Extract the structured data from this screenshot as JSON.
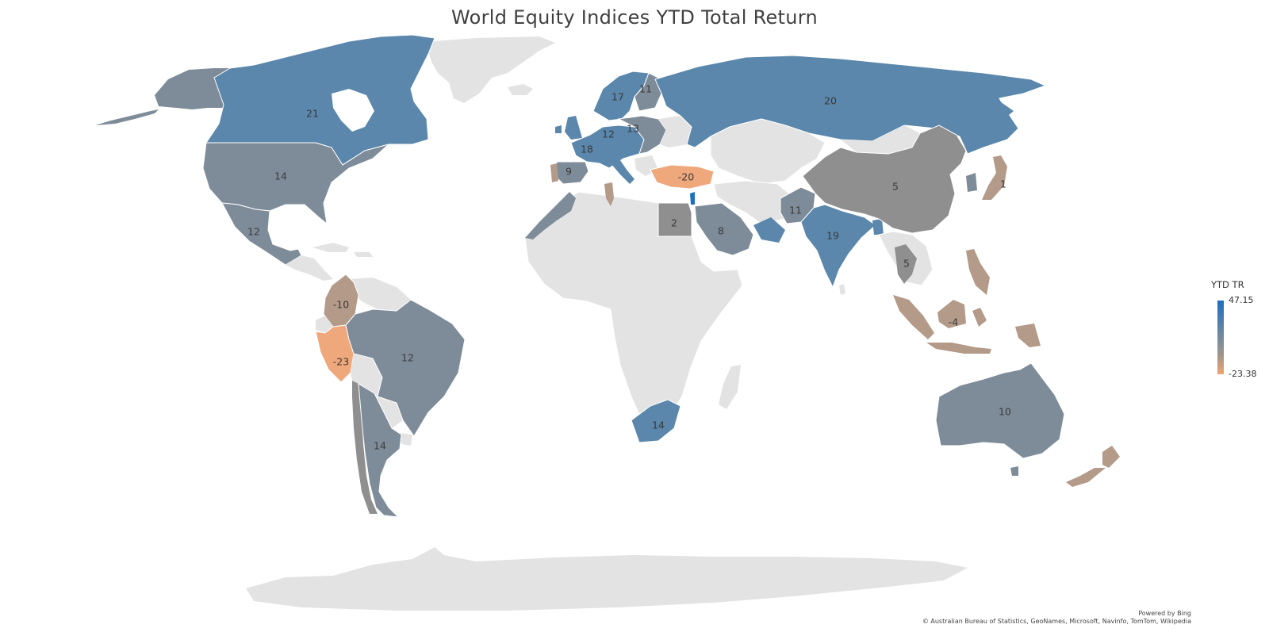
{
  "title": "World Equity Indices YTD Total Return",
  "legend": {
    "title": "YTD TR",
    "max": "47.15",
    "min": "-23.38"
  },
  "attribution": {
    "powered_by": "Powered by Bing",
    "copyright": "© Australian Bureau of Statistics, GeoNames, Microsoft, Navinfo, TomTom, Wikipedia"
  },
  "colors": {
    "nodata": "#e0e0e0",
    "steelblue": "#5a87ab",
    "slate": "#7a8d9f",
    "grey": "#8f8f8f",
    "tan": "#b39a89",
    "orange": "#efa77c"
  },
  "values": [
    {
      "label": "21",
      "color": "steelblue"
    },
    {
      "label": "14",
      "color": "slate"
    },
    {
      "label": "12",
      "color": "slate"
    },
    {
      "label": "-10",
      "color": "tan"
    },
    {
      "label": "-23",
      "color": "orange"
    },
    {
      "label": "12",
      "color": "slate"
    },
    {
      "label": "14",
      "color": "slate"
    },
    {
      "label": "20",
      "color": "steelblue"
    },
    {
      "label": "17",
      "color": "steelblue"
    },
    {
      "label": "11",
      "color": "slate"
    },
    {
      "label": "12",
      "color": "slate"
    },
    {
      "label": "13",
      "color": "slate"
    },
    {
      "label": "18",
      "color": "steelblue"
    },
    {
      "label": "9",
      "color": "slate"
    },
    {
      "label": "-20",
      "color": "orange"
    },
    {
      "label": "2",
      "color": "grey"
    },
    {
      "label": "8",
      "color": "slate"
    },
    {
      "label": "11",
      "color": "slate"
    },
    {
      "label": "19",
      "color": "steelblue"
    },
    {
      "label": "5",
      "color": "grey"
    },
    {
      "label": "5",
      "color": "grey"
    },
    {
      "label": "1",
      "color": "tan"
    },
    {
      "label": "-4",
      "color": "tan"
    },
    {
      "label": "14",
      "color": "slate"
    },
    {
      "label": "10",
      "color": "slate"
    }
  ]
}
